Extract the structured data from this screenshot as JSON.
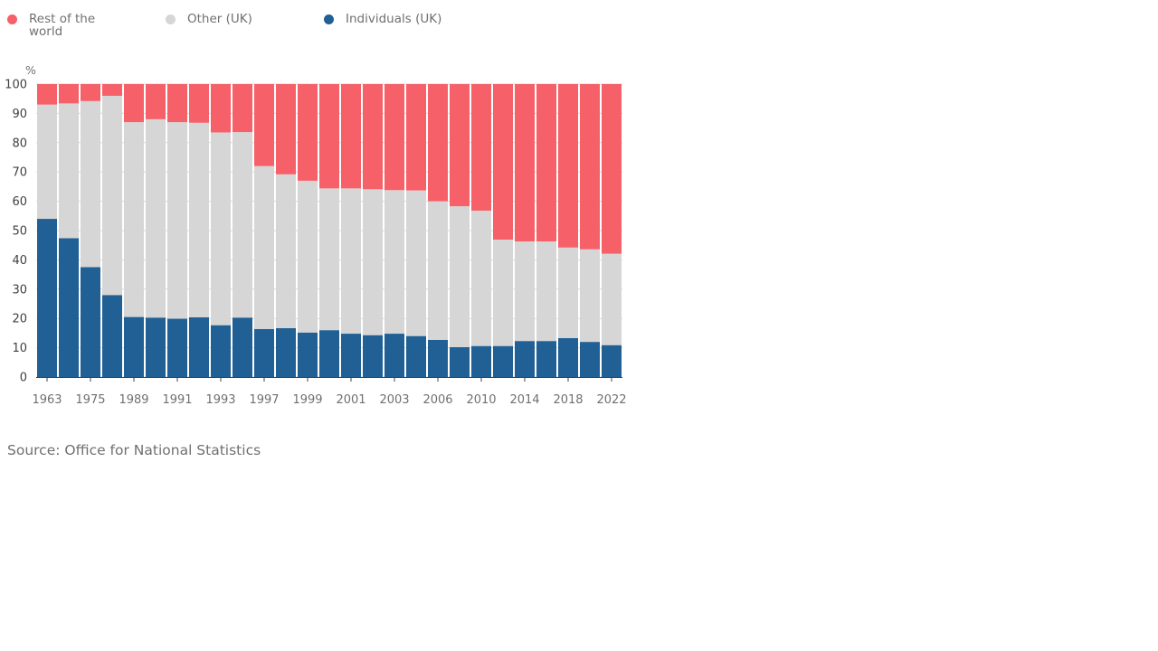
{
  "chart_data": {
    "type": "bar",
    "stacked": true,
    "ylabel": "%",
    "ylim": [
      0,
      100
    ],
    "yticks": [
      0,
      10,
      20,
      30,
      40,
      50,
      60,
      70,
      80,
      90,
      100
    ],
    "xtick_labels": [
      "1963",
      "1975",
      "1989",
      "1991",
      "1993",
      "1997",
      "1999",
      "2001",
      "2003",
      "2006",
      "2010",
      "2014",
      "2018",
      "2022"
    ],
    "xtick_positions": [
      0,
      2,
      4,
      6,
      8,
      10,
      12,
      14,
      16,
      18,
      20,
      22,
      24,
      26
    ],
    "legend_position": "top-left",
    "series": [
      {
        "name": "Individuals (UK)",
        "color": "#206095",
        "values": [
          54.0,
          47.4,
          37.5,
          28.0,
          20.5,
          20.3,
          19.9,
          20.4,
          17.7,
          20.3,
          16.4,
          16.7,
          15.2,
          16.0,
          14.8,
          14.3,
          14.8,
          14.0,
          12.7,
          10.2,
          10.6,
          10.6,
          12.3,
          12.3,
          13.3,
          12.0,
          10.9
        ]
      },
      {
        "name": "Other (UK)",
        "color": "#d6d6d6",
        "values": [
          39.0,
          46.0,
          56.7,
          68.0,
          66.5,
          67.7,
          67.1,
          66.4,
          65.8,
          63.3,
          55.6,
          52.5,
          51.8,
          48.4,
          49.6,
          49.8,
          49.0,
          49.7,
          47.3,
          48.1,
          46.2,
          36.3,
          34.0,
          34.0,
          30.9,
          31.6,
          31.2
        ]
      },
      {
        "name": "Rest of the world",
        "color": "#f66068",
        "values": [
          7.0,
          6.6,
          5.8,
          4.0,
          13.0,
          12.0,
          13.0,
          13.2,
          16.5,
          16.4,
          28.0,
          30.8,
          33.0,
          35.6,
          35.6,
          35.9,
          36.2,
          36.3,
          40.0,
          41.7,
          43.2,
          53.1,
          53.7,
          53.7,
          55.8,
          56.4,
          57.9
        ]
      }
    ]
  },
  "legend": {
    "items": [
      {
        "label": "Rest of the world",
        "color": "#f66068"
      },
      {
        "label": "Other (UK)",
        "color": "#d6d6d6"
      },
      {
        "label": "Individuals (UK)",
        "color": "#206095"
      }
    ]
  },
  "source": "Source: Office for National Statistics"
}
